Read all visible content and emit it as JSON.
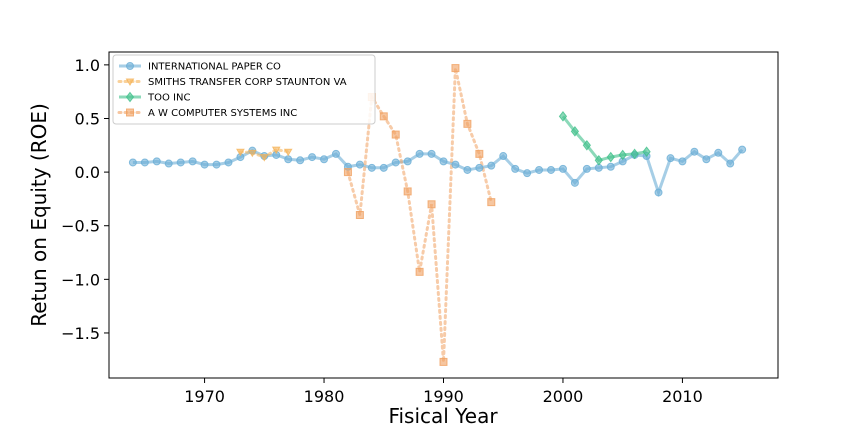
{
  "chart_data": {
    "type": "line",
    "xlabel": "Fisical Year",
    "ylabel": "Retun on Equity (ROE)",
    "xlim": [
      1962,
      2018
    ],
    "ylim": [
      -1.92,
      1.12
    ],
    "xticks": [
      1970,
      1980,
      1990,
      2000,
      2010
    ],
    "yticks": [
      1.0,
      0.5,
      0.0,
      -0.5,
      -1.0,
      -1.5
    ],
    "ytick_labels": [
      "1.0",
      "0.5",
      "0.0",
      "−0.5",
      "−1.0",
      "−1.5"
    ],
    "grid": false,
    "legend_position": "upper-left",
    "series": [
      {
        "name": "INTERNATIONAL PAPER CO",
        "color": "#6aaed6",
        "line": "solid",
        "marker": "circle",
        "x": [
          1964,
          1965,
          1966,
          1967,
          1968,
          1969,
          1970,
          1971,
          1972,
          1973,
          1974,
          1975,
          1976,
          1977,
          1978,
          1979,
          1980,
          1981,
          1982,
          1983,
          1984,
          1985,
          1986,
          1987,
          1988,
          1989,
          1990,
          1991,
          1992,
          1993,
          1994,
          1995,
          1996,
          1997,
          1998,
          1999,
          2000,
          2001,
          2002,
          2003,
          2004,
          2005,
          2006,
          2007,
          2008,
          2009,
          2010,
          2011,
          2012,
          2013,
          2014,
          2015
        ],
        "y": [
          0.09,
          0.09,
          0.1,
          0.08,
          0.09,
          0.1,
          0.07,
          0.07,
          0.09,
          0.14,
          0.2,
          0.15,
          0.16,
          0.12,
          0.11,
          0.14,
          0.12,
          0.17,
          0.05,
          0.07,
          0.04,
          0.04,
          0.09,
          0.1,
          0.17,
          0.17,
          0.1,
          0.07,
          0.02,
          0.04,
          0.06,
          0.15,
          0.03,
          -0.01,
          0.02,
          0.02,
          0.03,
          -0.1,
          0.03,
          0.04,
          0.05,
          0.1,
          0.16,
          0.15,
          -0.19,
          0.13,
          0.1,
          0.19,
          0.12,
          0.18,
          0.08,
          0.21
        ]
      },
      {
        "name": "SMITHS TRANSFER CORP STAUNTON VA",
        "color": "#f5b357",
        "line": "dotted",
        "marker": "triangle-down",
        "x": [
          1973,
          1974,
          1975,
          1976,
          1977
        ],
        "y": [
          0.19,
          0.18,
          0.14,
          0.21,
          0.19
        ]
      },
      {
        "name": "TOO INC",
        "color": "#3fbf8a",
        "line": "solid",
        "marker": "diamond",
        "x": [
          2000,
          2001,
          2002,
          2003,
          2004,
          2005,
          2006,
          2007
        ],
        "y": [
          0.52,
          0.38,
          0.25,
          0.11,
          0.14,
          0.16,
          0.17,
          0.19
        ]
      },
      {
        "name": "A W COMPUTER SYSTEMS INC",
        "color": "#f0a060",
        "line": "dotted",
        "marker": "square",
        "x": [
          1982,
          1983,
          1984,
          1985,
          1986,
          1987,
          1988,
          1989,
          1990,
          1991,
          1992,
          1993,
          1994
        ],
        "y": [
          0.0,
          -0.4,
          0.7,
          0.52,
          0.35,
          -0.18,
          -0.93,
          -0.3,
          -1.77,
          0.97,
          0.45,
          0.17,
          -0.28
        ]
      }
    ]
  }
}
